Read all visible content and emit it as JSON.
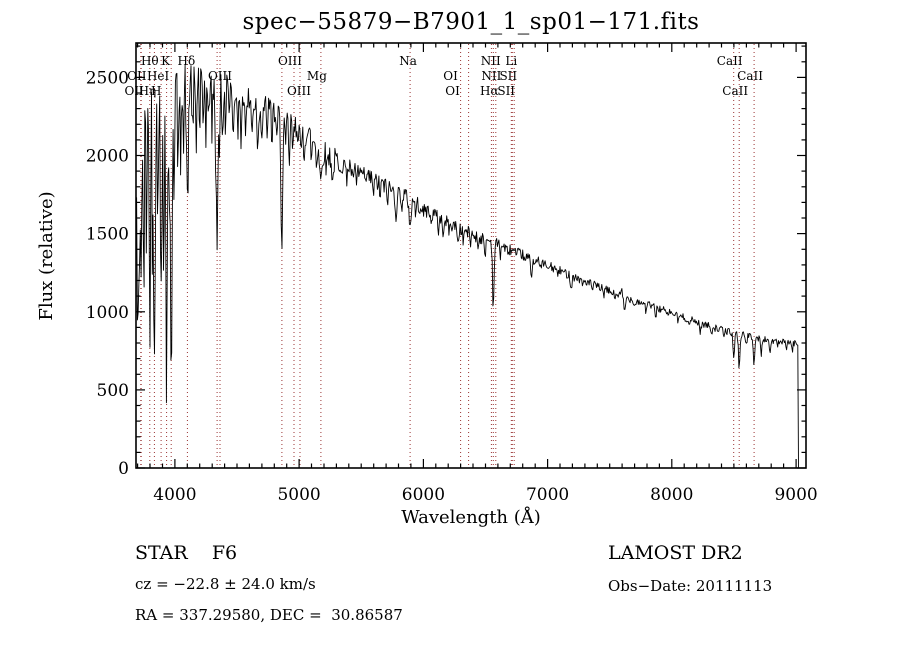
{
  "title": "spec−55879−B7901_1_sp01−171.fits",
  "footer": {
    "class_label": "STAR    F6",
    "survey": "LAMOST DR2",
    "cz": "cz = −22.8 ± 24.0 km/s",
    "obs_date": "Obs−Date: 20111113",
    "coords": "RA = 337.29580, DEC =  30.86587"
  },
  "chart_data": {
    "type": "line",
    "title": "spec−55879−B7901_1_sp01−171.fits",
    "xlabel": "Wavelength (Å)",
    "ylabel": "Flux (relative)",
    "xlim": [
      3687,
      9080
    ],
    "ylim": [
      0,
      2720
    ],
    "x_tick_values": [
      4000,
      5000,
      6000,
      7000,
      8000,
      9000
    ],
    "y_tick_values": [
      0,
      500,
      1000,
      1500,
      2000,
      2500
    ],
    "x_minor_step": 100,
    "y_minor_step": 100,
    "grid": false,
    "line_color": "#000000",
    "marker_color": "#993232",
    "spectral_line_markers": [
      3726,
      3729,
      3798,
      3835,
      3889,
      3933,
      3970,
      4101,
      4340,
      4363,
      4861,
      4959,
      5007,
      5175,
      5893,
      6300,
      6364,
      6548,
      6563,
      6583,
      6708,
      6716,
      6731,
      8498,
      8542,
      8662
    ],
    "spectral_labels": [
      {
        "label": "Hθ",
        "wavelength": 3798,
        "row": 1,
        "dx": 0
      },
      {
        "label": "K",
        "wavelength": 3933,
        "row": 1,
        "dx": -1
      },
      {
        "label": "Hδ",
        "wavelength": 4101,
        "row": 1,
        "dx": -1
      },
      {
        "label": "OIII",
        "wavelength": 4959,
        "row": 1,
        "dx": -4
      },
      {
        "label": "Na",
        "wavelength": 5893,
        "row": 1,
        "dx": -2
      },
      {
        "label": "NII",
        "wavelength": 6583,
        "row": 1,
        "dx": -5
      },
      {
        "label": "Li",
        "wavelength": 6708,
        "row": 1,
        "dx": 0
      },
      {
        "label": "CaII",
        "wavelength": 8498,
        "row": 1,
        "dx": -4
      },
      {
        "label": "OII",
        "wavelength": 3726,
        "row": 2,
        "dx": -4
      },
      {
        "label": "HeI",
        "wavelength": 3889,
        "row": 2,
        "dx": -3
      },
      {
        "label": "OIII",
        "wavelength": 4363,
        "row": 2,
        "dx": 0
      },
      {
        "label": "Mg",
        "wavelength": 5175,
        "row": 2,
        "dx": -4
      },
      {
        "label": "OI",
        "wavelength": 6300,
        "row": 2,
        "dx": -10
      },
      {
        "label": "NII",
        "wavelength": 6548,
        "row": 2,
        "dx": 0
      },
      {
        "label": "SII",
        "wavelength": 6716,
        "row": 2,
        "dx": -4
      },
      {
        "label": "CaII",
        "wavelength": 8662,
        "row": 2,
        "dx": -4
      },
      {
        "label": "OII",
        "wavelength": 3729,
        "row": 3,
        "dx": -7
      },
      {
        "label": "Hη",
        "wavelength": 3835,
        "row": 3,
        "dx": -7
      },
      {
        "label": "H",
        "wavelength": 3970,
        "row": 3,
        "dx": -15
      },
      {
        "label": "OIII",
        "wavelength": 5007,
        "row": 3,
        "dx": -1
      },
      {
        "label": "OI",
        "wavelength": 6364,
        "row": 3,
        "dx": -16
      },
      {
        "label": "Hα",
        "wavelength": 6563,
        "row": 3,
        "dx": -4
      },
      {
        "label": "SII",
        "wavelength": 6731,
        "row": 3,
        "dx": -8
      },
      {
        "label": "CaII",
        "wavelength": 8542,
        "row": 3,
        "dx": -4
      }
    ],
    "continuum": [
      [
        3690,
        1900
      ],
      [
        3720,
        2250
      ],
      [
        3760,
        2320
      ],
      [
        3800,
        2370
      ],
      [
        3850,
        2400
      ],
      [
        3900,
        2430
      ],
      [
        3950,
        2440
      ],
      [
        4000,
        2460
      ],
      [
        4060,
        2480
      ],
      [
        4120,
        2480
      ],
      [
        4180,
        2510
      ],
      [
        4240,
        2490
      ],
      [
        4300,
        2460
      ],
      [
        4360,
        2450
      ],
      [
        4420,
        2460
      ],
      [
        4480,
        2420
      ],
      [
        4540,
        2370
      ],
      [
        4600,
        2340
      ],
      [
        4660,
        2330
      ],
      [
        4720,
        2310
      ],
      [
        4790,
        2280
      ],
      [
        4861,
        2230
      ],
      [
        4930,
        2200
      ],
      [
        5000,
        2170
      ],
      [
        5080,
        2130
      ],
      [
        5175,
        2040
      ],
      [
        5260,
        1990
      ],
      [
        5350,
        1950
      ],
      [
        5450,
        1905
      ],
      [
        5550,
        1860
      ],
      [
        5650,
        1820
      ],
      [
        5750,
        1775
      ],
      [
        5850,
        1740
      ],
      [
        5950,
        1690
      ],
      [
        6050,
        1640
      ],
      [
        6150,
        1590
      ],
      [
        6250,
        1550
      ],
      [
        6350,
        1510
      ],
      [
        6450,
        1475
      ],
      [
        6550,
        1450
      ],
      [
        6650,
        1415
      ],
      [
        6750,
        1380
      ],
      [
        6870,
        1340
      ],
      [
        7000,
        1295
      ],
      [
        7150,
        1245
      ],
      [
        7300,
        1195
      ],
      [
        7450,
        1145
      ],
      [
        7600,
        1100
      ],
      [
        7750,
        1060
      ],
      [
        7900,
        1020
      ],
      [
        8050,
        975
      ],
      [
        8200,
        935
      ],
      [
        8350,
        895
      ],
      [
        8500,
        865
      ],
      [
        8600,
        845
      ],
      [
        8700,
        830
      ],
      [
        8800,
        815
      ],
      [
        8900,
        805
      ],
      [
        8970,
        800
      ],
      [
        9018,
        795
      ]
    ],
    "noise_amplitude": [
      [
        3690,
        360
      ],
      [
        3950,
        340
      ],
      [
        4010,
        160
      ],
      [
        4200,
        150
      ],
      [
        4400,
        120
      ],
      [
        4700,
        100
      ],
      [
        5000,
        88
      ],
      [
        5300,
        75
      ],
      [
        5600,
        65
      ],
      [
        5900,
        55
      ],
      [
        6200,
        46
      ],
      [
        6500,
        40
      ],
      [
        6800,
        33
      ],
      [
        7100,
        29
      ],
      [
        7500,
        26
      ],
      [
        8000,
        24
      ],
      [
        8500,
        22
      ],
      [
        9018,
        20
      ]
    ],
    "features": [
      [
        3698,
        800,
        4
      ],
      [
        3705,
        900,
        4
      ],
      [
        3712,
        700,
        5
      ],
      [
        3726,
        900,
        5
      ],
      [
        3737,
        550,
        4
      ],
      [
        3750,
        1050,
        5
      ],
      [
        3770,
        820,
        4
      ],
      [
        3798,
        1320,
        6
      ],
      [
        3820,
        900,
        4
      ],
      [
        3835,
        1520,
        6
      ],
      [
        3860,
        800,
        4
      ],
      [
        3889,
        1460,
        6
      ],
      [
        3910,
        950,
        4
      ],
      [
        3933,
        1870,
        6
      ],
      [
        3955,
        700,
        4
      ],
      [
        3970,
        1830,
        7
      ],
      [
        3995,
        720,
        4
      ],
      [
        4026,
        560,
        5
      ],
      [
        4045,
        500,
        4
      ],
      [
        4070,
        460,
        4
      ],
      [
        4101,
        840,
        7
      ],
      [
        4144,
        420,
        5
      ],
      [
        4172,
        440,
        5
      ],
      [
        4200,
        350,
        4
      ],
      [
        4226,
        400,
        5
      ],
      [
        4250,
        320,
        4
      ],
      [
        4271,
        360,
        4
      ],
      [
        4300,
        320,
        4
      ],
      [
        4325,
        350,
        4
      ],
      [
        4340,
        970,
        7
      ],
      [
        4360,
        400,
        4
      ],
      [
        4383,
        400,
        5
      ],
      [
        4405,
        300,
        4
      ],
      [
        4435,
        280,
        4
      ],
      [
        4472,
        320,
        5
      ],
      [
        4510,
        260,
        4
      ],
      [
        4530,
        280,
        5
      ],
      [
        4570,
        240,
        4
      ],
      [
        4620,
        230,
        4
      ],
      [
        4668,
        300,
        5
      ],
      [
        4700,
        220,
        4
      ],
      [
        4740,
        200,
        4
      ],
      [
        4780,
        210,
        4
      ],
      [
        4820,
        220,
        4
      ],
      [
        4861,
        770,
        7
      ],
      [
        4890,
        230,
        4
      ],
      [
        4920,
        260,
        5
      ],
      [
        4950,
        200,
        4
      ],
      [
        5015,
        210,
        5
      ],
      [
        5040,
        160,
        4
      ],
      [
        5100,
        150,
        4
      ],
      [
        5140,
        140,
        4
      ],
      [
        5175,
        200,
        9
      ],
      [
        5220,
        120,
        4
      ],
      [
        5270,
        170,
        6
      ],
      [
        5320,
        110,
        4
      ],
      [
        5380,
        100,
        4
      ],
      [
        5430,
        110,
        4
      ],
      [
        5460,
        130,
        4
      ],
      [
        5530,
        90,
        4
      ],
      [
        5600,
        100,
        4
      ],
      [
        5650,
        90,
        4
      ],
      [
        5710,
        90,
        4
      ],
      [
        5780,
        140,
        6
      ],
      [
        5830,
        90,
        4
      ],
      [
        5893,
        160,
        8
      ],
      [
        5940,
        80,
        4
      ],
      [
        6000,
        70,
        4
      ],
      [
        6060,
        80,
        4
      ],
      [
        6122,
        80,
        5
      ],
      [
        6162,
        100,
        5
      ],
      [
        6210,
        60,
        4
      ],
      [
        6280,
        110,
        5
      ],
      [
        6320,
        70,
        4
      ],
      [
        6380,
        60,
        4
      ],
      [
        6440,
        70,
        4
      ],
      [
        6495,
        120,
        5
      ],
      [
        6563,
        420,
        6
      ],
      [
        6620,
        60,
        4
      ],
      [
        6680,
        60,
        4
      ],
      [
        6750,
        50,
        4
      ],
      [
        6820,
        60,
        4
      ],
      [
        6870,
        100,
        7
      ],
      [
        6940,
        50,
        4
      ],
      [
        7000,
        40,
        4
      ],
      [
        7080,
        40,
        4
      ],
      [
        7190,
        80,
        6
      ],
      [
        7280,
        40,
        4
      ],
      [
        7360,
        40,
        4
      ],
      [
        7450,
        50,
        4
      ],
      [
        7540,
        40,
        4
      ],
      [
        7595,
        -90,
        2
      ],
      [
        7620,
        90,
        7
      ],
      [
        7700,
        40,
        4
      ],
      [
        7790,
        40,
        4
      ],
      [
        7870,
        60,
        5
      ],
      [
        7960,
        40,
        4
      ],
      [
        8050,
        40,
        4
      ],
      [
        8140,
        50,
        4
      ],
      [
        8230,
        60,
        5
      ],
      [
        8320,
        40,
        4
      ],
      [
        8420,
        50,
        4
      ],
      [
        8498,
        165,
        6
      ],
      [
        8542,
        215,
        6
      ],
      [
        8600,
        60,
        4
      ],
      [
        8662,
        165,
        6
      ],
      [
        8720,
        110,
        5
      ],
      [
        8790,
        80,
        5
      ],
      [
        8850,
        40,
        4
      ],
      [
        8920,
        50,
        4
      ],
      [
        8970,
        60,
        4
      ]
    ],
    "spectrum_start": 3692,
    "spectrum_end": 9018,
    "cutoff_wavelength": 9020,
    "cutoff_flux": 0,
    "sample_step": 6,
    "noise_seed": 42
  }
}
